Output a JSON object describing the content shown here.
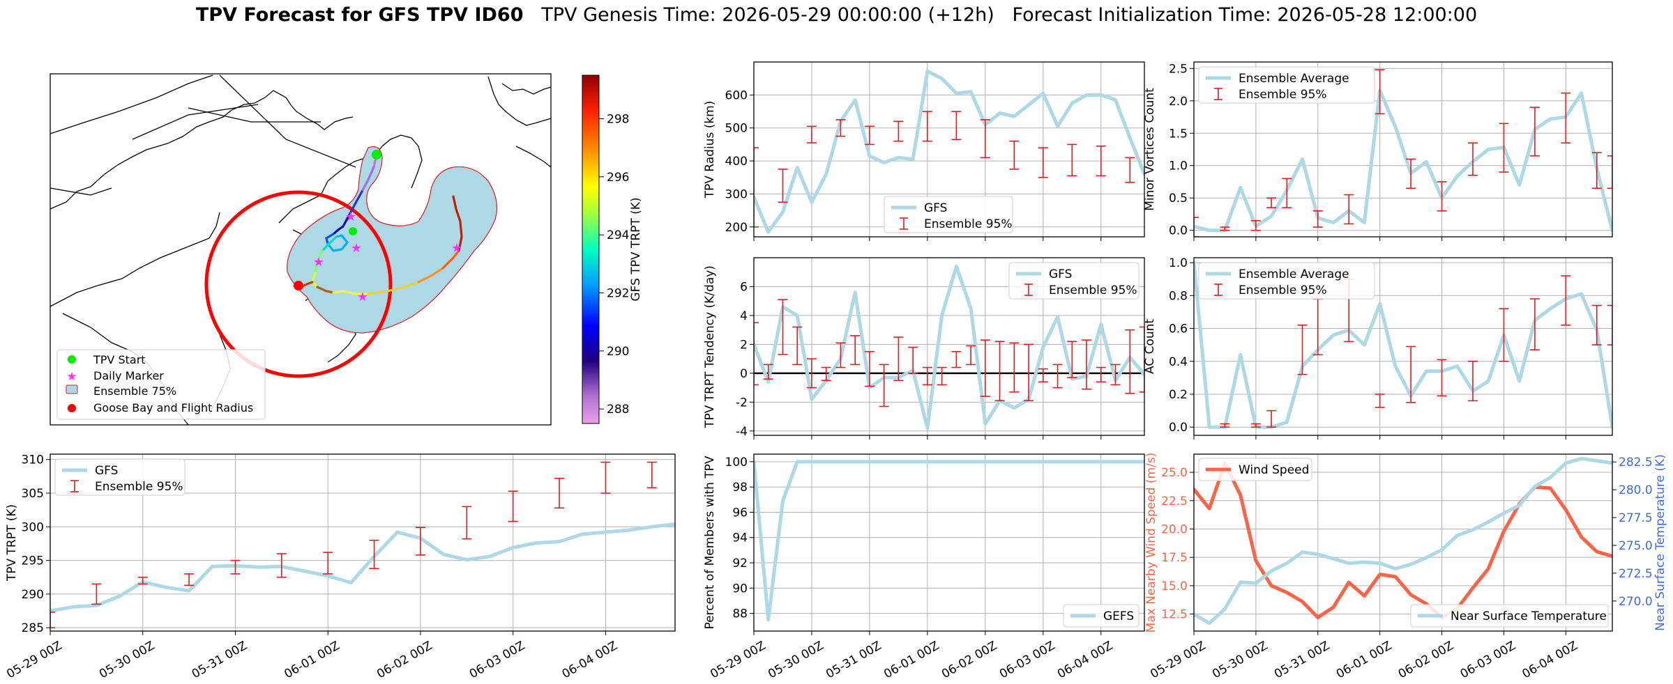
{
  "title": {
    "bold": "TPV Forecast for GFS TPV ID60",
    "rest": "   TPV Genesis Time: 2026-05-29 00:00:00 (+12h)   Forecast Initialization Time: 2026-05-28 12:00:00"
  },
  "colors": {
    "gfs_line": "#add8e6",
    "ensemble_bar": "#e41a1c",
    "wind": "#ff6347",
    "temp_axis": "#4169e1",
    "fill_75": "#add8e6",
    "grid": "#b0b0b0"
  },
  "map": {
    "colorbar_label": "GFS TPV TRPT (K)",
    "colorbar_ticks": [
      288,
      290,
      292,
      294,
      296,
      298
    ],
    "colorbar_range": [
      287.5,
      299.5
    ],
    "legend": [
      "TPV Start",
      "Daily Marker",
      "Ensemble 75%",
      "Goose Bay and Flight Radius"
    ]
  },
  "chart_data": [
    {
      "id": "radius",
      "type": "line",
      "ylabel": "TPV Radius (km)",
      "xlim": [
        0,
        6.75
      ],
      "ylim": [
        170,
        700
      ],
      "yticks": [
        200,
        300,
        400,
        500,
        600
      ],
      "legend": [
        "GFS",
        "Ensemble 95%"
      ],
      "legend_pos": "lower-center",
      "series": [
        {
          "name": "GFS",
          "x": [
            0,
            0.25,
            0.5,
            0.75,
            1.0,
            1.25,
            1.5,
            1.75,
            2.0,
            2.25,
            2.5,
            2.75,
            3.0,
            3.25,
            3.5,
            3.75,
            4.0,
            4.25,
            4.5,
            4.75,
            5.0,
            5.25,
            5.5,
            5.75,
            6.0,
            6.25,
            6.5,
            6.75
          ],
          "values": [
            290,
            185,
            245,
            380,
            275,
            360,
            520,
            585,
            415,
            395,
            410,
            405,
            672,
            650,
            605,
            610,
            510,
            545,
            535,
            570,
            605,
            505,
            575,
            600,
            600,
            585,
            470,
            360
          ]
        }
      ],
      "error_bars": {
        "x": [
          0,
          0.5,
          1.0,
          1.5,
          2.0,
          2.5,
          3.0,
          3.5,
          4.0,
          4.5,
          5.0,
          5.5,
          6.0,
          6.5,
          7.0
        ],
        "low": [
          200,
          275,
          455,
          475,
          450,
          460,
          460,
          465,
          410,
          375,
          350,
          355,
          355,
          335,
          235
        ],
        "high": [
          440,
          375,
          505,
          525,
          505,
          520,
          550,
          550,
          525,
          460,
          440,
          450,
          445,
          410,
          310
        ]
      }
    },
    {
      "id": "tendency",
      "type": "line",
      "ylabel": "TPV TRPT Tendency (K/day)",
      "xlim": [
        0,
        6.75
      ],
      "ylim": [
        -4.3,
        8
      ],
      "yticks": [
        -4,
        -2,
        0,
        2,
        4,
        6
      ],
      "zero_line": true,
      "legend": [
        "GFS",
        "Ensemble 95%"
      ],
      "legend_pos": "upper-right",
      "series": [
        {
          "name": "GFS",
          "x": [
            0,
            0.25,
            0.5,
            0.75,
            1.0,
            1.25,
            1.5,
            1.75,
            2.0,
            2.25,
            2.5,
            2.75,
            3.0,
            3.25,
            3.5,
            3.75,
            4.0,
            4.25,
            4.5,
            4.75,
            5.0,
            5.25,
            5.5,
            5.75,
            6.0,
            6.25,
            6.5,
            6.75
          ],
          "values": [
            2.0,
            -0.6,
            4.6,
            4.0,
            -1.8,
            -0.5,
            1.0,
            5.6,
            -1.0,
            -0.3,
            -0.3,
            0.2,
            -3.8,
            4.0,
            7.4,
            4.5,
            -3.5,
            -1.9,
            -2.4,
            -1.8,
            1.8,
            3.9,
            -0.4,
            -0.2,
            3.4,
            -0.5,
            1.1,
            -0.1
          ]
        }
      ],
      "error_bars": {
        "x": [
          0,
          0.25,
          0.5,
          0.75,
          1.0,
          1.25,
          1.5,
          1.75,
          2.0,
          2.25,
          2.5,
          2.75,
          3.0,
          3.25,
          3.5,
          3.75,
          4.0,
          4.25,
          4.5,
          4.75,
          5.0,
          5.25,
          5.5,
          5.75,
          6.0,
          6.25,
          6.5,
          6.75
        ],
        "low": [
          -0.8,
          -0.4,
          1.3,
          0.6,
          -1.0,
          -0.5,
          0.4,
          0.6,
          -0.9,
          -2.3,
          -0.5,
          0.0,
          -0.8,
          -0.8,
          0.4,
          0.6,
          -1.6,
          -1.9,
          -1.3,
          -1.9,
          -0.6,
          -1.0,
          -0.3,
          -1.1,
          -0.6,
          -0.8,
          -1.4,
          -1.3
        ],
        "high": [
          3.5,
          0.6,
          5.1,
          3.2,
          1.0,
          0.4,
          2.1,
          2.6,
          1.5,
          0.6,
          2.5,
          1.8,
          0.4,
          0.4,
          1.5,
          1.9,
          2.3,
          2.2,
          2.1,
          2.0,
          0.3,
          0.6,
          2.2,
          2.3,
          0.4,
          0.6,
          3.0,
          3.2
        ]
      }
    },
    {
      "id": "members",
      "type": "line",
      "ylabel": "Percent of Members with TPV",
      "xlim": [
        0,
        6.75
      ],
      "ylim": [
        86.6,
        100.6
      ],
      "yticks": [
        88,
        90,
        92,
        94,
        96,
        98,
        100
      ],
      "xticks": [
        "05-29 00Z",
        "05-30 00Z",
        "05-31 00Z",
        "06-01 00Z",
        "06-02 00Z",
        "06-03 00Z",
        "06-04 00Z"
      ],
      "legend": [
        "GEFS"
      ],
      "legend_pos": "lower-right",
      "series": [
        {
          "name": "GEFS",
          "x": [
            0,
            0.25,
            0.5,
            0.75,
            1.0,
            1.25,
            1.5,
            1.75,
            2.0,
            2.25,
            2.5,
            2.75,
            3.0,
            3.25,
            3.5,
            3.75,
            4.0,
            4.25,
            4.5,
            4.75,
            5.0,
            5.25,
            5.5,
            5.75,
            6.0,
            6.25,
            6.5,
            6.75
          ],
          "values": [
            100,
            87.5,
            96.9,
            100,
            100,
            100,
            100,
            100,
            100,
            100,
            100,
            100,
            100,
            100,
            100,
            100,
            100,
            100,
            100,
            100,
            100,
            100,
            100,
            100,
            100,
            100,
            100,
            100
          ]
        }
      ]
    },
    {
      "id": "minor",
      "type": "line",
      "ylabel": "Minor Vortices Count",
      "xlim": [
        0,
        6.75
      ],
      "ylim": [
        -0.1,
        2.6
      ],
      "yticks": [
        0.0,
        0.5,
        1.0,
        1.5,
        2.0,
        2.5
      ],
      "legend": [
        "Ensemble Average",
        "Ensemble 95%"
      ],
      "legend_pos": "upper-left",
      "series": [
        {
          "name": "Ensemble Average",
          "x": [
            0,
            0.25,
            0.5,
            0.75,
            1.0,
            1.25,
            1.5,
            1.75,
            2.0,
            2.25,
            2.5,
            2.75,
            3.0,
            3.25,
            3.5,
            3.75,
            4.0,
            4.25,
            4.5,
            4.75,
            5.0,
            5.25,
            5.5,
            5.75,
            6.0,
            6.25,
            6.5,
            6.75
          ],
          "values": [
            0.06,
            0.0,
            0.0,
            0.66,
            0.06,
            0.22,
            0.62,
            1.1,
            0.19,
            0.12,
            0.3,
            0.12,
            2.16,
            1.6,
            0.88,
            1.06,
            0.5,
            0.84,
            1.06,
            1.25,
            1.28,
            0.7,
            1.56,
            1.72,
            1.75,
            2.12,
            0.95,
            0.0
          ]
        }
      ],
      "error_bars": {
        "x": [
          0,
          0.5,
          1.0,
          1.25,
          1.5,
          2.0,
          2.5,
          3.0,
          3.5,
          4.0,
          4.5,
          5.0,
          5.5,
          6.0,
          6.5,
          6.75
        ],
        "low": [
          -0.1,
          0.0,
          0.0,
          0.35,
          0.35,
          0.05,
          0.1,
          1.8,
          0.65,
          0.3,
          0.85,
          0.9,
          1.15,
          1.35,
          0.65,
          0.65
        ],
        "high": [
          0.2,
          0.05,
          0.15,
          0.5,
          0.8,
          0.3,
          0.55,
          2.48,
          1.1,
          0.75,
          1.35,
          1.65,
          1.9,
          2.12,
          1.2,
          1.15
        ]
      }
    },
    {
      "id": "ac",
      "type": "line",
      "ylabel": "AC Count",
      "xlim": [
        0,
        6.75
      ],
      "ylim": [
        -0.05,
        1.03
      ],
      "yticks": [
        0.0,
        0.2,
        0.4,
        0.6,
        0.8,
        1.0
      ],
      "legend": [
        "Ensemble Average",
        "Ensemble 95%"
      ],
      "legend_pos": "upper-left",
      "series": [
        {
          "name": "Ensemble Average",
          "x": [
            0,
            0.25,
            0.5,
            0.75,
            1.0,
            1.25,
            1.5,
            1.75,
            2.0,
            2.25,
            2.5,
            2.75,
            3.0,
            3.25,
            3.5,
            3.75,
            4.0,
            4.25,
            4.5,
            4.75,
            5.0,
            5.25,
            5.5,
            5.75,
            6.0,
            6.25,
            6.5,
            6.75
          ],
          "values": [
            1.0,
            0.0,
            0.0,
            0.44,
            0.0,
            0.0,
            0.03,
            0.37,
            0.47,
            0.56,
            0.59,
            0.5,
            0.75,
            0.37,
            0.19,
            0.34,
            0.34,
            0.37,
            0.22,
            0.28,
            0.56,
            0.28,
            0.65,
            0.72,
            0.78,
            0.81,
            0.59,
            0.0
          ]
        }
      ],
      "error_bars": {
        "x": [
          0.5,
          1.0,
          1.25,
          1.75,
          2.0,
          2.5,
          3.0,
          3.5,
          4.0,
          4.5,
          5.0,
          5.5,
          6.0,
          6.5,
          6.75
        ],
        "low": [
          0.0,
          0.0,
          0.0,
          0.32,
          0.44,
          0.52,
          0.12,
          0.15,
          0.19,
          0.16,
          0.4,
          0.47,
          0.62,
          0.5,
          0.5
        ],
        "high": [
          0.02,
          0.02,
          0.1,
          0.62,
          0.78,
          0.9,
          0.2,
          0.49,
          0.41,
          0.4,
          0.72,
          0.78,
          0.92,
          0.74,
          0.74
        ]
      }
    },
    {
      "id": "trpt",
      "type": "line",
      "ylabel": "TPV TRPT (K)",
      "xlim": [
        0,
        6.75
      ],
      "ylim": [
        284.5,
        310.8
      ],
      "yticks": [
        285,
        290,
        295,
        300,
        305,
        310
      ],
      "xticks": [
        "05-29 00Z",
        "05-30 00Z",
        "05-31 00Z",
        "06-01 00Z",
        "06-02 00Z",
        "06-03 00Z",
        "06-04 00Z"
      ],
      "legend": [
        "GFS",
        "Ensemble 95%"
      ],
      "legend_pos": "upper-left",
      "series": [
        {
          "name": "GFS",
          "x": [
            0,
            0.25,
            0.5,
            0.75,
            1.0,
            1.25,
            1.5,
            1.75,
            2.0,
            2.25,
            2.5,
            2.75,
            3.0,
            3.25,
            3.5,
            3.75,
            4.0,
            4.25,
            4.5,
            4.75,
            5.0,
            5.25,
            5.5,
            5.75,
            6.0,
            6.25,
            6.5,
            6.75
          ],
          "values": [
            287.5,
            288.1,
            288.3,
            289.7,
            291.8,
            291.0,
            290.5,
            294.1,
            294.2,
            294.0,
            294.1,
            293.4,
            292.7,
            291.7,
            295.6,
            299.2,
            298.3,
            295.9,
            295.1,
            295.6,
            296.9,
            297.6,
            297.8,
            298.9,
            299.2,
            299.5,
            300.0,
            300.4
          ]
        }
      ],
      "error_bars": {
        "x": [
          0,
          0.5,
          1.0,
          1.5,
          2.0,
          2.5,
          3.0,
          3.5,
          4.0,
          4.5,
          5.0,
          5.5,
          6.0,
          6.5
        ],
        "low": [
          285.0,
          288.5,
          291.5,
          291.3,
          293.0,
          292.5,
          293.0,
          293.8,
          295.8,
          298.2,
          300.8,
          302.8,
          305.0,
          305.8
        ],
        "high": [
          287.3,
          291.5,
          292.5,
          293.0,
          295.0,
          296.0,
          296.2,
          298.0,
          299.9,
          303.0,
          305.3,
          307.2,
          309.6,
          309.6
        ]
      }
    },
    {
      "id": "wind_temp",
      "type": "line",
      "ylabel": "Max Nearby Wind Speed (m/s)",
      "ylabel_right": "Near Surface Temperature (K)",
      "xlim": [
        0,
        6.75
      ],
      "ylim": [
        11.0,
        26.6
      ],
      "yticks": [
        12.5,
        15.0,
        17.5,
        20.0,
        22.5,
        25.0
      ],
      "ylim_right": [
        267.3,
        283.2
      ],
      "yticks_right": [
        270.0,
        272.5,
        275.0,
        277.5,
        280.0,
        282.5
      ],
      "xticks": [
        "05-29 00Z",
        "05-30 00Z",
        "05-31 00Z",
        "06-01 00Z",
        "06-02 00Z",
        "06-03 00Z",
        "06-04 00Z"
      ],
      "legend": [
        "Wind Speed",
        "Near Surface Temperature"
      ],
      "series": [
        {
          "name": "Wind Speed",
          "x": [
            0,
            0.25,
            0.5,
            0.75,
            1.0,
            1.25,
            1.5,
            1.75,
            2.0,
            2.25,
            2.5,
            2.75,
            3.0,
            3.25,
            3.5,
            3.75,
            4.0,
            4.25,
            4.5,
            4.75,
            5.0,
            5.25,
            5.5,
            5.75,
            6.0,
            6.25,
            6.5,
            6.75
          ],
          "values": [
            23.5,
            21.8,
            25.8,
            23.0,
            17.2,
            15.0,
            14.4,
            13.6,
            12.2,
            13.1,
            15.3,
            14.1,
            16.0,
            15.8,
            14.2,
            13.4,
            12.2,
            13.0,
            14.8,
            16.5,
            19.8,
            22.2,
            23.7,
            23.6,
            21.7,
            19.3,
            18.0,
            17.6
          ]
        },
        {
          "name": "Near Surface Temperature",
          "axis": "right",
          "x": [
            0,
            0.25,
            0.5,
            0.75,
            1.0,
            1.25,
            1.5,
            1.75,
            2.0,
            2.25,
            2.5,
            2.75,
            3.0,
            3.25,
            3.5,
            3.75,
            4.0,
            4.25,
            4.5,
            4.75,
            5.0,
            5.25,
            5.5,
            5.75,
            6.0,
            6.25,
            6.5,
            6.75
          ],
          "values": [
            268.8,
            268.0,
            269.3,
            271.7,
            271.6,
            272.7,
            273.4,
            274.4,
            274.2,
            273.8,
            273.4,
            273.5,
            273.4,
            272.9,
            273.3,
            273.9,
            274.6,
            275.9,
            276.4,
            277.1,
            277.9,
            278.6,
            280.3,
            281.1,
            282.4,
            282.8,
            282.6,
            282.4
          ]
        }
      ]
    }
  ]
}
